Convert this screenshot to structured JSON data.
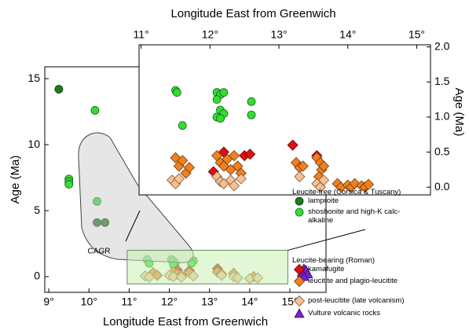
{
  "chart_data": [
    {
      "type": "scatter",
      "xlabel": "Longitude East from Greenwich",
      "ylabel": "Age (Ma)",
      "xlim": [
        8.9,
        15.9
      ],
      "ylim": [
        -1.19,
        15.9
      ],
      "xticks": [
        {
          "value": 9,
          "label": "9°"
        },
        {
          "value": 10,
          "label": "10°"
        },
        {
          "value": 11,
          "label": "11°"
        },
        {
          "value": 12,
          "label": "12°"
        },
        {
          "value": 13,
          "label": "13°"
        },
        {
          "value": 14,
          "label": "14°"
        },
        {
          "value": 15,
          "label": "15°"
        }
      ],
      "yticks": [
        0,
        5,
        10,
        15
      ],
      "annotations": [
        "CAGR"
      ],
      "legend_groups": [
        "Leucite-free (Corsica & Tuscany)",
        "Leucite-bearing (Roman)"
      ],
      "series": [
        {
          "name": "lamproite",
          "color": "#1f7a1f",
          "marker": "circle",
          "x": [
            9.25,
            10.2,
            10.4
          ],
          "values": [
            14.2,
            4.1,
            4.1
          ]
        },
        {
          "name": "shoshonite and high-K calc-alkaline",
          "color": "#33dd33",
          "marker": "circle",
          "x": [
            10.15,
            9.5,
            9.5,
            9.5,
            10.2,
            11.45,
            11.5,
            12.05,
            12.1,
            12.15,
            12.6,
            12.55,
            12.1
          ],
          "values": [
            12.6,
            7.4,
            7.2,
            7.0,
            5.7,
            1.3,
            1.0,
            1.3,
            1.2,
            1.0,
            1.2,
            1.0,
            0.9
          ]
        },
        {
          "name": "kamafugite",
          "color": "#e01010",
          "marker": "diamond",
          "x": [
            12.2,
            12.5,
            13.2
          ],
          "values": [
            0.5,
            0.45,
            0.6
          ]
        },
        {
          "name": "leucitite and plagio-leucitite",
          "color": "#f08020",
          "marker": "diamond",
          "x": [
            11.6,
            11.7,
            12.1,
            12.2,
            12.3,
            12.5,
            13.2,
            13.3,
            13.6,
            14.1
          ],
          "values": [
            0.3,
            0.1,
            0.35,
            0.2,
            0.1,
            0.3,
            0.35,
            0.2,
            0.25,
            0.0
          ]
        },
        {
          "name": "post-leucitite (late volcanism)",
          "color": "#f8c090",
          "marker": "diamond",
          "x": [
            11.4,
            11.5,
            12.0,
            12.1,
            12.3,
            12.6,
            13.3,
            13.6,
            13.7,
            14.0,
            14.2
          ],
          "values": [
            0.05,
            -0.05,
            0.1,
            0.0,
            -0.05,
            0.05,
            0.1,
            0.0,
            -0.1,
            -0.15,
            -0.1
          ]
        },
        {
          "name": "Vulture volcanic rocks",
          "color": "#7a20d0",
          "marker": "triangle",
          "x": [
            15.35,
            15.4,
            15.3,
            15.45,
            15.35
          ],
          "values": [
            0.6,
            0.5,
            0.3,
            0.2,
            0.0
          ]
        }
      ]
    },
    {
      "type": "scatter",
      "xlabel": "Longitude East from Greenwich",
      "ylabel": "Age (Ma)",
      "xlim": [
        10.97,
        15.2
      ],
      "ylim": [
        -0.11,
        2.03
      ],
      "xticks": [
        {
          "value": 11,
          "label": "11°"
        },
        {
          "value": 12,
          "label": "12°"
        },
        {
          "value": 13,
          "label": "13°"
        },
        {
          "value": 14,
          "label": "14°"
        },
        {
          "value": 15,
          "label": "15°"
        }
      ],
      "yticks": [
        {
          "value": 0,
          "label": "0.0"
        },
        {
          "value": 0.5,
          "label": "0.5"
        },
        {
          "value": 1,
          "label": "1.0"
        },
        {
          "value": 1.5,
          "label": "1.5"
        },
        {
          "value": 2,
          "label": "2.0"
        }
      ],
      "series": [
        {
          "color": "#33dd33",
          "marker": "circle",
          "x": [
            11.5,
            11.52,
            11.6,
            12.1,
            12.15,
            12.2,
            12.1,
            12.15,
            12.2,
            12.1,
            12.15,
            12.6,
            12.6
          ],
          "values": [
            1.38,
            1.35,
            0.88,
            1.35,
            1.32,
            1.35,
            1.25,
            1.1,
            1.05,
            1.0,
            0.98,
            1.22,
            1.03
          ]
        },
        {
          "color": "#e01010",
          "marker": "diamond",
          "x": [
            12.05,
            12.2,
            12.5,
            12.58,
            13.2,
            13.55
          ],
          "values": [
            0.22,
            0.5,
            0.45,
            0.47,
            0.6,
            0.45
          ]
        },
        {
          "color": "#f08020",
          "marker": "diamond",
          "x": [
            11.5,
            11.55,
            11.6,
            11.65,
            11.7,
            12.1,
            12.15,
            12.2,
            12.25,
            12.3,
            12.35,
            12.4,
            12.45,
            13.25,
            13.3,
            13.35,
            13.55,
            13.6,
            13.62,
            13.58,
            13.65,
            13.85,
            13.9,
            14.0,
            14.05,
            14.1,
            14.2,
            14.25,
            14.3
          ],
          "values": [
            0.42,
            0.3,
            0.38,
            0.2,
            0.28,
            0.45,
            0.35,
            0.3,
            0.4,
            0.25,
            0.45,
            0.3,
            0.2,
            0.35,
            0.28,
            0.3,
            0.42,
            0.35,
            0.25,
            0.15,
            0.3,
            0.05,
            0.0,
            0.03,
            0.0,
            0.05,
            0.02,
            0.0,
            0.04
          ]
        },
        {
          "color": "#f8c090",
          "marker": "diamond",
          "x": [
            11.45,
            11.5,
            11.55,
            12.1,
            12.15,
            12.2,
            12.3,
            12.35,
            12.45,
            13.3,
            13.55,
            13.6,
            13.65
          ],
          "values": [
            0.1,
            0.05,
            0.12,
            0.15,
            0.08,
            0.05,
            0.1,
            0.02,
            0.12,
            0.15,
            0.05,
            0.0,
            0.1
          ]
        }
      ]
    }
  ]
}
